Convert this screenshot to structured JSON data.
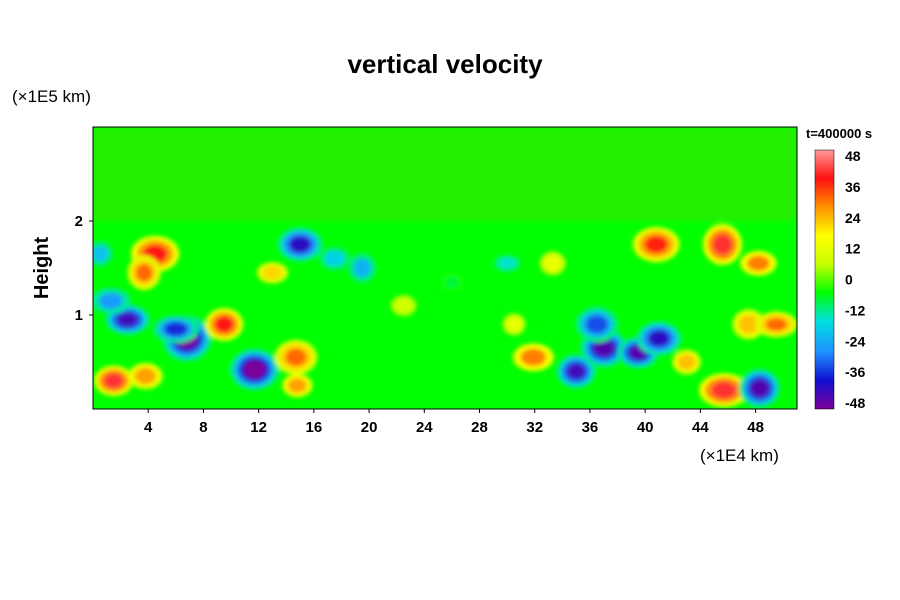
{
  "chart_data": {
    "type": "heatmap",
    "title": "vertical velocity",
    "xlabel": "",
    "ylabel": "Height",
    "x_unit": "(×1E4 km)",
    "y_unit": "(×1E5 km)",
    "time_label": "t=400000 s",
    "xlim": [
      0,
      51
    ],
    "ylim": [
      0,
      3
    ],
    "x_ticks": [
      "4",
      "8",
      "12",
      "16",
      "20",
      "24",
      "28",
      "32",
      "36",
      "40",
      "44",
      "48"
    ],
    "y_ticks": [
      "1",
      "2"
    ],
    "colorbar": {
      "min": -48,
      "max": 48,
      "ticks": [
        "48",
        "36",
        "24",
        "12",
        "0",
        "-12",
        "-24",
        "-36",
        "-48"
      ],
      "colors": [
        "#7b0099",
        "#1010d0",
        "#1e90ff",
        "#00e0e0",
        "#00ff00",
        "#c8ff00",
        "#ffff00",
        "#ff9000",
        "#ff1010",
        "#ff9a9a"
      ]
    },
    "background_value": 0,
    "features": [
      {
        "x": 1.5,
        "y": 0.3,
        "value": 40
      },
      {
        "x": 3.8,
        "y": 0.35,
        "value": 25
      },
      {
        "x": 4.5,
        "y": 1.65,
        "value": 38
      },
      {
        "x": 3.7,
        "y": 1.45,
        "value": 30
      },
      {
        "x": 2.5,
        "y": 0.95,
        "value": -42
      },
      {
        "x": 1.3,
        "y": 1.15,
        "value": -25
      },
      {
        "x": 0.5,
        "y": 1.65,
        "value": -20
      },
      {
        "x": 6.8,
        "y": 0.75,
        "value": -48
      },
      {
        "x": 6.0,
        "y": 0.85,
        "value": -35
      },
      {
        "x": 9.5,
        "y": 0.9,
        "value": 38
      },
      {
        "x": 11.7,
        "y": 0.42,
        "value": -48
      },
      {
        "x": 14.7,
        "y": 0.55,
        "value": 30
      },
      {
        "x": 14.8,
        "y": 0.25,
        "value": 25
      },
      {
        "x": 15.0,
        "y": 1.75,
        "value": -40
      },
      {
        "x": 17.5,
        "y": 1.6,
        "value": -18
      },
      {
        "x": 19.5,
        "y": 1.5,
        "value": -22
      },
      {
        "x": 13.0,
        "y": 1.45,
        "value": 20
      },
      {
        "x": 31.9,
        "y": 0.55,
        "value": 28
      },
      {
        "x": 30.5,
        "y": 0.9,
        "value": 12
      },
      {
        "x": 33.3,
        "y": 1.55,
        "value": 12
      },
      {
        "x": 30.0,
        "y": 1.55,
        "value": -15
      },
      {
        "x": 35.0,
        "y": 0.4,
        "value": -42
      },
      {
        "x": 37.0,
        "y": 0.65,
        "value": -44
      },
      {
        "x": 36.5,
        "y": 0.9,
        "value": -32
      },
      {
        "x": 39.5,
        "y": 0.6,
        "value": -44
      },
      {
        "x": 41.0,
        "y": 0.75,
        "value": -40
      },
      {
        "x": 40.8,
        "y": 1.75,
        "value": 36
      },
      {
        "x": 45.6,
        "y": 1.75,
        "value": 40
      },
      {
        "x": 48.2,
        "y": 1.55,
        "value": 28
      },
      {
        "x": 45.7,
        "y": 0.2,
        "value": 40
      },
      {
        "x": 48.3,
        "y": 0.22,
        "value": -44
      },
      {
        "x": 47.5,
        "y": 0.9,
        "value": 22
      },
      {
        "x": 49.5,
        "y": 0.9,
        "value": 30
      },
      {
        "x": 43.0,
        "y": 0.5,
        "value": 22
      },
      {
        "x": 26.0,
        "y": 1.35,
        "value": -8
      },
      {
        "x": 22.5,
        "y": 1.1,
        "value": 8
      }
    ]
  }
}
